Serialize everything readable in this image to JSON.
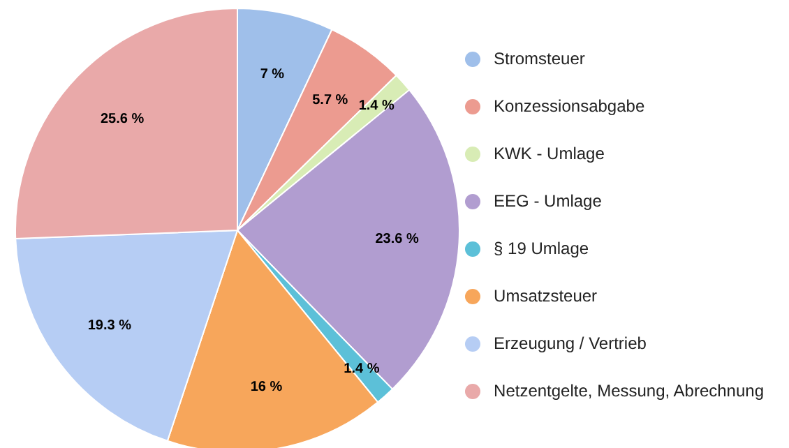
{
  "chart_data": {
    "type": "pie",
    "categories": [
      "Stromsteuer",
      "Konzessionsabgabe",
      "KWK - Umlage",
      "EEG - Umlage",
      "§ 19 Umlage",
      "Umsatzsteuer",
      "Erzeugung / Vertrieb",
      "Netzentgelte, Messung, Abrechnung"
    ],
    "values": [
      7,
      5.7,
      1.4,
      23.6,
      1.4,
      16,
      19.3,
      25.6
    ],
    "value_labels": [
      "7 %",
      "5.7 %",
      "1.4 %",
      "23.6 %",
      "1.4 %",
      "16 %",
      "19.3 %",
      "25.6 %"
    ],
    "colors": [
      "#9fbfea",
      "#ec9b90",
      "#d8ecb5",
      "#b19dd0",
      "#5cc0d8",
      "#f7a65b",
      "#b6cdf4",
      "#e9a9a9"
    ],
    "legend": "right"
  }
}
